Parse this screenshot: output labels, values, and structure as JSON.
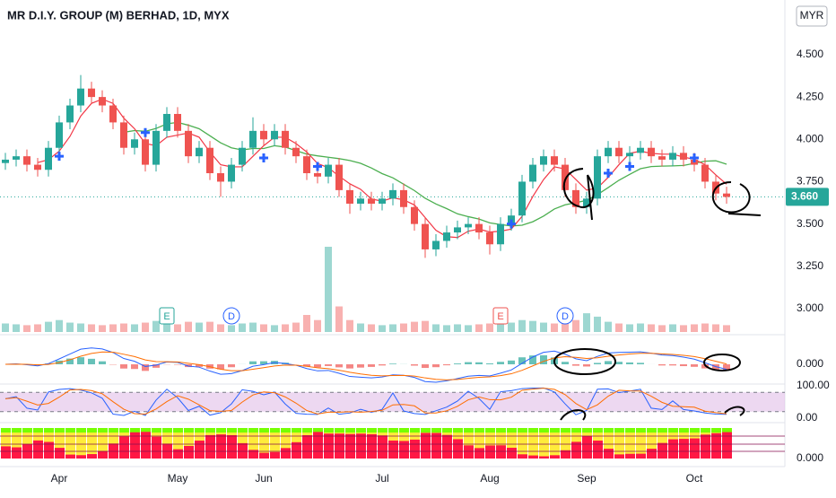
{
  "chart_data": {
    "type": "candlestick",
    "title": "MR D.I.Y. GROUP (M) BERHAD, 1D, MYX",
    "currency": "MYR",
    "categories": [
      null,
      null,
      null,
      null,
      null,
      "Apr",
      null,
      null,
      null,
      null,
      null,
      null,
      null,
      null,
      null,
      null,
      "May",
      null,
      null,
      null,
      null,
      null,
      null,
      null,
      "Jun",
      null,
      null,
      null,
      null,
      null,
      null,
      null,
      null,
      null,
      null,
      "Jul",
      null,
      null,
      null,
      null,
      null,
      null,
      null,
      null,
      null,
      "Aug",
      null,
      null,
      null,
      null,
      null,
      null,
      null,
      null,
      "Sep",
      null,
      null,
      null,
      null,
      null,
      null,
      null,
      null,
      null,
      "Oct",
      null,
      null,
      null
    ],
    "open": [
      3.86,
      3.88,
      3.9,
      3.85,
      3.82,
      3.95,
      4.1,
      4.2,
      4.3,
      4.25,
      4.2,
      4.1,
      3.95,
      4.0,
      3.85,
      4.05,
      4.15,
      4.05,
      3.9,
      3.95,
      3.8,
      3.75,
      3.85,
      3.95,
      4.05,
      4.0,
      4.05,
      3.95,
      3.9,
      3.8,
      3.78,
      3.85,
      3.7,
      3.62,
      3.65,
      3.62,
      3.65,
      3.7,
      3.6,
      3.5,
      3.35,
      3.4,
      3.45,
      3.48,
      3.5,
      3.45,
      3.38,
      3.5,
      3.55,
      3.75,
      3.85,
      3.9,
      3.85,
      3.7,
      3.6,
      3.65,
      3.9,
      3.95,
      3.9,
      3.92,
      3.95,
      3.9,
      3.88,
      3.92,
      3.88,
      3.85,
      3.75,
      3.68
    ],
    "high": [
      3.92,
      3.94,
      3.94,
      3.89,
      3.99,
      4.14,
      4.24,
      4.38,
      4.34,
      4.29,
      4.24,
      4.14,
      4.04,
      4.04,
      4.09,
      4.19,
      4.19,
      4.09,
      3.99,
      3.99,
      3.84,
      3.89,
      3.99,
      4.13,
      4.09,
      4.09,
      4.09,
      3.99,
      3.94,
      3.84,
      3.89,
      3.89,
      3.74,
      3.69,
      3.69,
      3.69,
      3.74,
      3.74,
      3.64,
      3.54,
      3.44,
      3.49,
      3.52,
      3.54,
      3.54,
      3.49,
      3.54,
      3.59,
      3.79,
      3.89,
      3.94,
      3.94,
      3.89,
      3.74,
      3.69,
      3.94,
      3.99,
      3.99,
      3.96,
      3.99,
      3.99,
      3.94,
      3.96,
      3.96,
      3.92,
      3.89,
      3.79,
      3.72
    ],
    "low": [
      3.82,
      3.84,
      3.81,
      3.78,
      3.78,
      3.91,
      4.06,
      4.16,
      4.21,
      4.16,
      4.06,
      3.91,
      3.91,
      3.81,
      3.81,
      4.01,
      4.01,
      3.86,
      3.86,
      3.76,
      3.66,
      3.71,
      3.81,
      3.91,
      3.96,
      3.96,
      3.91,
      3.86,
      3.76,
      3.74,
      3.74,
      3.66,
      3.56,
      3.58,
      3.58,
      3.58,
      3.61,
      3.56,
      3.46,
      3.3,
      3.31,
      3.36,
      3.41,
      3.44,
      3.41,
      3.32,
      3.34,
      3.46,
      3.51,
      3.71,
      3.81,
      3.81,
      3.66,
      3.56,
      3.56,
      3.61,
      3.86,
      3.86,
      3.86,
      3.88,
      3.86,
      3.84,
      3.84,
      3.84,
      3.81,
      3.71,
      3.64,
      3.62
    ],
    "close": [
      3.88,
      3.9,
      3.85,
      3.82,
      3.95,
      4.1,
      4.2,
      4.3,
      4.25,
      4.2,
      4.1,
      3.95,
      4.0,
      3.85,
      4.05,
      4.15,
      4.05,
      3.9,
      3.95,
      3.8,
      3.75,
      3.85,
      3.95,
      4.05,
      4.0,
      4.05,
      3.95,
      3.9,
      3.8,
      3.78,
      3.85,
      3.7,
      3.62,
      3.65,
      3.62,
      3.65,
      3.7,
      3.6,
      3.5,
      3.35,
      3.4,
      3.45,
      3.48,
      3.5,
      3.45,
      3.38,
      3.5,
      3.55,
      3.75,
      3.85,
      3.9,
      3.85,
      3.7,
      3.6,
      3.65,
      3.9,
      3.95,
      3.9,
      3.92,
      3.95,
      3.9,
      3.88,
      3.92,
      3.88,
      3.85,
      3.75,
      3.68,
      3.66
    ],
    "volume": [
      10,
      9,
      8,
      9,
      12,
      14,
      11,
      10,
      9,
      8,
      9,
      10,
      9,
      11,
      13,
      10,
      9,
      12,
      11,
      12,
      9,
      8,
      10,
      11,
      9,
      8,
      9,
      11,
      20,
      14,
      100,
      30,
      14,
      10,
      9,
      8,
      9,
      10,
      12,
      13,
      9,
      8,
      9,
      8,
      9,
      10,
      12,
      11,
      14,
      13,
      11,
      10,
      12,
      14,
      22,
      18,
      12,
      10,
      9,
      10,
      9,
      8,
      9,
      8,
      9,
      10,
      9,
      8
    ],
    "up_color": "#26a69a",
    "down_color": "#ef5350",
    "ylim": [
      2.862,
      4.823
    ],
    "yticks": [
      {
        "value": 3,
        "label": "3.000"
      },
      {
        "value": 3.25,
        "label": "3.250"
      },
      {
        "value": 3.5,
        "label": "3.500"
      },
      {
        "value": 3.75,
        "label": "3.750"
      },
      {
        "value": 4,
        "label": "4.000"
      },
      {
        "value": 4.25,
        "label": "4.250"
      },
      {
        "value": 4.5,
        "label": "4.500"
      }
    ],
    "last": {
      "value": 3.66,
      "label": "3.660"
    },
    "events": [
      {
        "label": "E",
        "x": 15
      },
      {
        "label": "D",
        "x": 21
      },
      {
        "label": "E",
        "x": 46
      },
      {
        "label": "D",
        "x": 52
      }
    ],
    "signals": [
      {
        "x": 5,
        "value": 3.9
      },
      {
        "x": 13,
        "value": 4.04
      },
      {
        "x": 24,
        "value": 3.89
      },
      {
        "x": 29,
        "value": 3.84
      },
      {
        "x": 47,
        "value": 3.5
      },
      {
        "x": 56,
        "value": 3.8
      },
      {
        "x": 58,
        "value": 3.84
      },
      {
        "x": 64,
        "value": 3.89
      }
    ],
    "macd_yticks": [
      {
        "value": 0,
        "label": "0.000"
      }
    ],
    "stoch_yticks": [
      {
        "value": 100,
        "label": "100.00"
      },
      {
        "value": 0,
        "label": "0.00"
      }
    ],
    "trend_yticks": [
      {
        "value": 0,
        "label": "0.000"
      }
    ]
  }
}
